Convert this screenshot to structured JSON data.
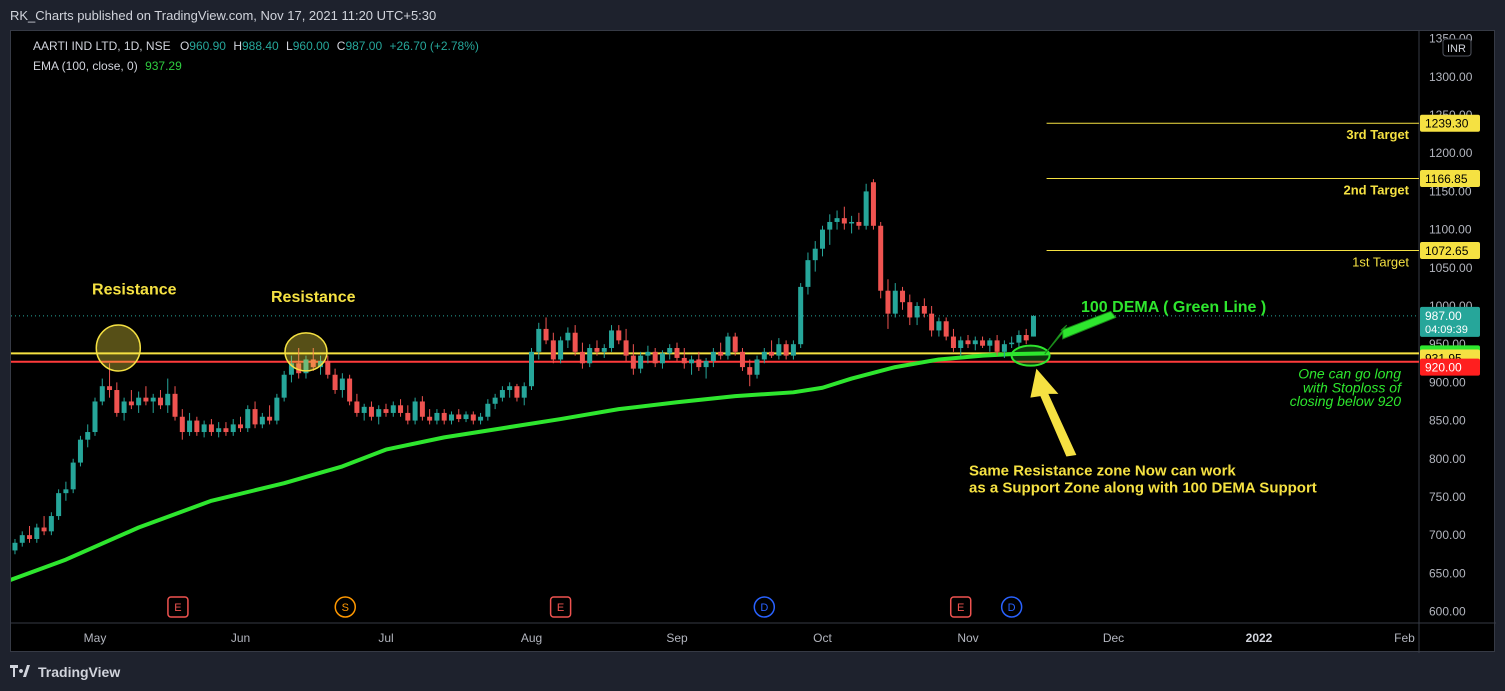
{
  "header": {
    "published": "RK_Charts published on TradingView.com, Nov 17, 2021 11:20 UTC+5:30"
  },
  "legend": {
    "symbol": "AARTI IND LTD, 1D, NSE",
    "o_label": "O",
    "o": "960.90",
    "h_label": "H",
    "h": "988.40",
    "l_label": "L",
    "l": "960.00",
    "c_label": "C",
    "c": "987.00",
    "change": "+26.70 (+2.78%)",
    "ema_label": "EMA (100, close, 0)",
    "ema_value": "937.29"
  },
  "footer": {
    "brand": "TradingView"
  },
  "colors": {
    "up": "#26a69a",
    "down": "#ef5350",
    "ema": "#2ee62e",
    "target": "#f5e142",
    "yellow_label": "#f5e142",
    "red_label": "#ff1f1f"
  },
  "chart_data": {
    "type": "candlestick",
    "currency": "INR",
    "ylim": [
      585,
      1360
    ],
    "y_ticks": [
      "1350.00",
      "1300.00",
      "1250.00",
      "1200.00",
      "1150.00",
      "1100.00",
      "1050.00",
      "1000.00",
      "950.00",
      "900.00",
      "850.00",
      "800.00",
      "750.00",
      "700.00",
      "650.00",
      "600.00"
    ],
    "x_ticks": [
      "May",
      "Jun",
      "Jul",
      "Aug",
      "Sep",
      "Oct",
      "Nov",
      "Dec",
      "2022",
      "Feb"
    ],
    "price_labels": [
      {
        "text": "1239.30",
        "value": 1239.3,
        "style": "yellow"
      },
      {
        "text": "1166.85",
        "value": 1166.85,
        "style": "yellow"
      },
      {
        "text": "1072.65",
        "value": 1072.65,
        "style": "yellow"
      },
      {
        "text": "987.00",
        "value": 987.0,
        "style": "teal",
        "sub": "04:09:39"
      },
      {
        "text": "937.30",
        "value": 937.3,
        "style": "green"
      },
      {
        "text": "931.95",
        "value": 931.95,
        "style": "yellow"
      },
      {
        "text": "920.00",
        "value": 920.0,
        "style": "red"
      }
    ],
    "targets": [
      {
        "label": "3rd Target",
        "value": 1239.3
      },
      {
        "label": "2nd Target",
        "value": 1166.85
      },
      {
        "label": "1st Target",
        "value": 1072.65
      }
    ],
    "zone_lines": [
      {
        "value": 938,
        "color": "#f5e142"
      },
      {
        "value": 927,
        "color": "#ff3b3b"
      }
    ],
    "last_price_dotted": 987.0,
    "events": [
      {
        "label": "E",
        "month_pos": 0.57,
        "color": "#ef5350"
      },
      {
        "label": "S",
        "month_pos": 1.72,
        "color": "#ff9800"
      },
      {
        "label": "E",
        "month_pos": 3.2,
        "color": "#ef5350"
      },
      {
        "label": "D",
        "month_pos": 4.6,
        "color": "#2962ff"
      },
      {
        "label": "E",
        "month_pos": 5.95,
        "color": "#ef5350"
      },
      {
        "label": "D",
        "month_pos": 6.3,
        "color": "#2962ff"
      }
    ],
    "annotations": {
      "resistance_1": "Resistance",
      "resistance_2": "Resistance",
      "ema_note": "100 DEMA ( Green Line )",
      "support_note_1": "Same Resistance zone Now can work",
      "support_note_2": "as a Support Zone along with 100 DEMA Support",
      "stoploss_1": "One can go long",
      "stoploss_2": "with Stoploss of",
      "stoploss_3": "closing below 920"
    },
    "ema": [
      [
        -1.0,
        620
      ],
      [
        -0.6,
        640
      ],
      [
        -0.2,
        668
      ],
      [
        0.3,
        710
      ],
      [
        0.8,
        745
      ],
      [
        1.3,
        768
      ],
      [
        1.7,
        790
      ],
      [
        2.0,
        812
      ],
      [
        2.4,
        828
      ],
      [
        2.8,
        840
      ],
      [
        3.2,
        852
      ],
      [
        3.6,
        865
      ],
      [
        4.0,
        874
      ],
      [
        4.4,
        882
      ],
      [
        4.8,
        887
      ],
      [
        5.0,
        893
      ],
      [
        5.2,
        905
      ],
      [
        5.5,
        920
      ],
      [
        5.8,
        930
      ],
      [
        6.1,
        935
      ],
      [
        6.3,
        937
      ],
      [
        6.55,
        938
      ]
    ],
    "candles": [
      {
        "t": -0.55,
        "o": 680,
        "h": 695,
        "l": 675,
        "c": 690
      },
      {
        "t": -0.5,
        "o": 690,
        "h": 705,
        "l": 685,
        "c": 700
      },
      {
        "t": -0.45,
        "o": 700,
        "h": 712,
        "l": 690,
        "c": 695
      },
      {
        "t": -0.4,
        "o": 695,
        "h": 715,
        "l": 690,
        "c": 710
      },
      {
        "t": -0.35,
        "o": 710,
        "h": 725,
        "l": 700,
        "c": 705
      },
      {
        "t": -0.3,
        "o": 705,
        "h": 730,
        "l": 700,
        "c": 725
      },
      {
        "t": -0.25,
        "o": 725,
        "h": 760,
        "l": 720,
        "c": 755
      },
      {
        "t": -0.2,
        "o": 755,
        "h": 770,
        "l": 745,
        "c": 760
      },
      {
        "t": -0.15,
        "o": 760,
        "h": 800,
        "l": 755,
        "c": 795
      },
      {
        "t": -0.1,
        "o": 795,
        "h": 830,
        "l": 790,
        "c": 825
      },
      {
        "t": -0.05,
        "o": 825,
        "h": 845,
        "l": 815,
        "c": 835
      },
      {
        "t": 0.0,
        "o": 835,
        "h": 880,
        "l": 830,
        "c": 875
      },
      {
        "t": 0.05,
        "o": 875,
        "h": 905,
        "l": 870,
        "c": 895
      },
      {
        "t": 0.1,
        "o": 895,
        "h": 925,
        "l": 880,
        "c": 890
      },
      {
        "t": 0.15,
        "o": 890,
        "h": 900,
        "l": 855,
        "c": 860
      },
      {
        "t": 0.2,
        "o": 860,
        "h": 880,
        "l": 850,
        "c": 875
      },
      {
        "t": 0.25,
        "o": 875,
        "h": 890,
        "l": 865,
        "c": 870
      },
      {
        "t": 0.3,
        "o": 870,
        "h": 888,
        "l": 860,
        "c": 880
      },
      {
        "t": 0.35,
        "o": 880,
        "h": 895,
        "l": 870,
        "c": 875
      },
      {
        "t": 0.4,
        "o": 875,
        "h": 885,
        "l": 860,
        "c": 880
      },
      {
        "t": 0.45,
        "o": 880,
        "h": 890,
        "l": 865,
        "c": 870
      },
      {
        "t": 0.5,
        "o": 870,
        "h": 905,
        "l": 860,
        "c": 885
      },
      {
        "t": 0.55,
        "o": 885,
        "h": 895,
        "l": 850,
        "c": 855
      },
      {
        "t": 0.6,
        "o": 855,
        "h": 865,
        "l": 825,
        "c": 835
      },
      {
        "t": 0.65,
        "o": 835,
        "h": 860,
        "l": 830,
        "c": 850
      },
      {
        "t": 0.7,
        "o": 850,
        "h": 855,
        "l": 830,
        "c": 835
      },
      {
        "t": 0.75,
        "o": 835,
        "h": 850,
        "l": 828,
        "c": 845
      },
      {
        "t": 0.8,
        "o": 845,
        "h": 852,
        "l": 830,
        "c": 835
      },
      {
        "t": 0.85,
        "o": 835,
        "h": 848,
        "l": 828,
        "c": 840
      },
      {
        "t": 0.9,
        "o": 840,
        "h": 848,
        "l": 830,
        "c": 835
      },
      {
        "t": 0.95,
        "o": 835,
        "h": 852,
        "l": 830,
        "c": 845
      },
      {
        "t": 1.0,
        "o": 845,
        "h": 855,
        "l": 835,
        "c": 840
      },
      {
        "t": 1.05,
        "o": 840,
        "h": 870,
        "l": 835,
        "c": 865
      },
      {
        "t": 1.1,
        "o": 865,
        "h": 875,
        "l": 840,
        "c": 845
      },
      {
        "t": 1.15,
        "o": 845,
        "h": 860,
        "l": 840,
        "c": 855
      },
      {
        "t": 1.2,
        "o": 855,
        "h": 870,
        "l": 845,
        "c": 850
      },
      {
        "t": 1.25,
        "o": 850,
        "h": 885,
        "l": 845,
        "c": 880
      },
      {
        "t": 1.3,
        "o": 880,
        "h": 915,
        "l": 875,
        "c": 910
      },
      {
        "t": 1.35,
        "o": 910,
        "h": 935,
        "l": 900,
        "c": 925
      },
      {
        "t": 1.4,
        "o": 925,
        "h": 945,
        "l": 905,
        "c": 912
      },
      {
        "t": 1.45,
        "o": 912,
        "h": 935,
        "l": 905,
        "c": 930
      },
      {
        "t": 1.5,
        "o": 930,
        "h": 945,
        "l": 915,
        "c": 920
      },
      {
        "t": 1.55,
        "o": 920,
        "h": 935,
        "l": 910,
        "c": 928
      },
      {
        "t": 1.6,
        "o": 928,
        "h": 935,
        "l": 905,
        "c": 910
      },
      {
        "t": 1.65,
        "o": 910,
        "h": 918,
        "l": 885,
        "c": 890
      },
      {
        "t": 1.7,
        "o": 890,
        "h": 912,
        "l": 880,
        "c": 905
      },
      {
        "t": 1.75,
        "o": 905,
        "h": 910,
        "l": 870,
        "c": 875
      },
      {
        "t": 1.8,
        "o": 875,
        "h": 885,
        "l": 855,
        "c": 860
      },
      {
        "t": 1.85,
        "o": 860,
        "h": 872,
        "l": 850,
        "c": 868
      },
      {
        "t": 1.9,
        "o": 868,
        "h": 875,
        "l": 850,
        "c": 855
      },
      {
        "t": 1.95,
        "o": 855,
        "h": 870,
        "l": 845,
        "c": 865
      },
      {
        "t": 2.0,
        "o": 865,
        "h": 872,
        "l": 855,
        "c": 860
      },
      {
        "t": 2.05,
        "o": 860,
        "h": 875,
        "l": 855,
        "c": 870
      },
      {
        "t": 2.1,
        "o": 870,
        "h": 878,
        "l": 855,
        "c": 860
      },
      {
        "t": 2.15,
        "o": 860,
        "h": 870,
        "l": 845,
        "c": 850
      },
      {
        "t": 2.2,
        "o": 850,
        "h": 880,
        "l": 845,
        "c": 875
      },
      {
        "t": 2.25,
        "o": 875,
        "h": 882,
        "l": 850,
        "c": 855
      },
      {
        "t": 2.3,
        "o": 855,
        "h": 865,
        "l": 845,
        "c": 850
      },
      {
        "t": 2.35,
        "o": 850,
        "h": 865,
        "l": 845,
        "c": 860
      },
      {
        "t": 2.4,
        "o": 860,
        "h": 865,
        "l": 845,
        "c": 850
      },
      {
        "t": 2.45,
        "o": 850,
        "h": 862,
        "l": 845,
        "c": 858
      },
      {
        "t": 2.5,
        "o": 858,
        "h": 865,
        "l": 848,
        "c": 852
      },
      {
        "t": 2.55,
        "o": 852,
        "h": 862,
        "l": 848,
        "c": 858
      },
      {
        "t": 2.6,
        "o": 858,
        "h": 862,
        "l": 845,
        "c": 850
      },
      {
        "t": 2.65,
        "o": 850,
        "h": 860,
        "l": 845,
        "c": 855
      },
      {
        "t": 2.7,
        "o": 855,
        "h": 878,
        "l": 850,
        "c": 872
      },
      {
        "t": 2.75,
        "o": 872,
        "h": 885,
        "l": 865,
        "c": 880
      },
      {
        "t": 2.8,
        "o": 880,
        "h": 895,
        "l": 875,
        "c": 890
      },
      {
        "t": 2.85,
        "o": 890,
        "h": 900,
        "l": 880,
        "c": 895
      },
      {
        "t": 2.9,
        "o": 895,
        "h": 898,
        "l": 875,
        "c": 880
      },
      {
        "t": 2.95,
        "o": 880,
        "h": 900,
        "l": 870,
        "c": 895
      },
      {
        "t": 3.0,
        "o": 895,
        "h": 945,
        "l": 890,
        "c": 940
      },
      {
        "t": 3.05,
        "o": 940,
        "h": 978,
        "l": 930,
        "c": 970
      },
      {
        "t": 3.1,
        "o": 970,
        "h": 985,
        "l": 950,
        "c": 955
      },
      {
        "t": 3.15,
        "o": 955,
        "h": 965,
        "l": 925,
        "c": 930
      },
      {
        "t": 3.2,
        "o": 930,
        "h": 960,
        "l": 925,
        "c": 955
      },
      {
        "t": 3.25,
        "o": 955,
        "h": 972,
        "l": 945,
        "c": 965
      },
      {
        "t": 3.3,
        "o": 965,
        "h": 975,
        "l": 935,
        "c": 940
      },
      {
        "t": 3.35,
        "o": 940,
        "h": 952,
        "l": 918,
        "c": 925
      },
      {
        "t": 3.4,
        "o": 925,
        "h": 950,
        "l": 920,
        "c": 945
      },
      {
        "t": 3.45,
        "o": 945,
        "h": 955,
        "l": 935,
        "c": 940
      },
      {
        "t": 3.5,
        "o": 940,
        "h": 950,
        "l": 932,
        "c": 945
      },
      {
        "t": 3.55,
        "o": 945,
        "h": 975,
        "l": 940,
        "c": 968
      },
      {
        "t": 3.6,
        "o": 968,
        "h": 975,
        "l": 950,
        "c": 955
      },
      {
        "t": 3.65,
        "o": 955,
        "h": 970,
        "l": 928,
        "c": 935
      },
      {
        "t": 3.7,
        "o": 935,
        "h": 950,
        "l": 910,
        "c": 918
      },
      {
        "t": 3.75,
        "o": 918,
        "h": 940,
        "l": 912,
        "c": 935
      },
      {
        "t": 3.8,
        "o": 935,
        "h": 948,
        "l": 925,
        "c": 940
      },
      {
        "t": 3.85,
        "o": 940,
        "h": 945,
        "l": 920,
        "c": 925
      },
      {
        "t": 3.9,
        "o": 925,
        "h": 942,
        "l": 918,
        "c": 938
      },
      {
        "t": 3.95,
        "o": 938,
        "h": 950,
        "l": 930,
        "c": 945
      },
      {
        "t": 4.0,
        "o": 945,
        "h": 952,
        "l": 928,
        "c": 932
      },
      {
        "t": 4.05,
        "o": 932,
        "h": 945,
        "l": 918,
        "c": 925
      },
      {
        "t": 4.1,
        "o": 925,
        "h": 935,
        "l": 910,
        "c": 930
      },
      {
        "t": 4.15,
        "o": 930,
        "h": 940,
        "l": 915,
        "c": 920
      },
      {
        "t": 4.2,
        "o": 920,
        "h": 932,
        "l": 905,
        "c": 928
      },
      {
        "t": 4.25,
        "o": 928,
        "h": 945,
        "l": 920,
        "c": 940
      },
      {
        "t": 4.3,
        "o": 940,
        "h": 952,
        "l": 930,
        "c": 935
      },
      {
        "t": 4.35,
        "o": 935,
        "h": 965,
        "l": 930,
        "c": 960
      },
      {
        "t": 4.4,
        "o": 960,
        "h": 965,
        "l": 935,
        "c": 940
      },
      {
        "t": 4.45,
        "o": 940,
        "h": 945,
        "l": 915,
        "c": 920
      },
      {
        "t": 4.5,
        "o": 920,
        "h": 930,
        "l": 895,
        "c": 910
      },
      {
        "t": 4.55,
        "o": 910,
        "h": 935,
        "l": 905,
        "c": 930
      },
      {
        "t": 4.6,
        "o": 930,
        "h": 945,
        "l": 925,
        "c": 940
      },
      {
        "t": 4.65,
        "o": 940,
        "h": 955,
        "l": 932,
        "c": 935
      },
      {
        "t": 4.7,
        "o": 935,
        "h": 958,
        "l": 930,
        "c": 950
      },
      {
        "t": 4.75,
        "o": 950,
        "h": 955,
        "l": 930,
        "c": 935
      },
      {
        "t": 4.8,
        "o": 935,
        "h": 955,
        "l": 930,
        "c": 950
      },
      {
        "t": 4.85,
        "o": 950,
        "h": 1030,
        "l": 945,
        "c": 1025
      },
      {
        "t": 4.9,
        "o": 1025,
        "h": 1070,
        "l": 1015,
        "c": 1060
      },
      {
        "t": 4.95,
        "o": 1060,
        "h": 1085,
        "l": 1045,
        "c": 1075
      },
      {
        "t": 5.0,
        "o": 1075,
        "h": 1105,
        "l": 1065,
        "c": 1100
      },
      {
        "t": 5.05,
        "o": 1100,
        "h": 1120,
        "l": 1080,
        "c": 1110
      },
      {
        "t": 5.1,
        "o": 1110,
        "h": 1125,
        "l": 1100,
        "c": 1115
      },
      {
        "t": 5.15,
        "o": 1115,
        "h": 1130,
        "l": 1100,
        "c": 1108
      },
      {
        "t": 5.2,
        "o": 1108,
        "h": 1118,
        "l": 1095,
        "c": 1110
      },
      {
        "t": 5.25,
        "o": 1110,
        "h": 1122,
        "l": 1100,
        "c": 1105
      },
      {
        "t": 5.3,
        "o": 1105,
        "h": 1160,
        "l": 1100,
        "c": 1150
      },
      {
        "t": 5.35,
        "o": 1162,
        "h": 1166,
        "l": 1100,
        "c": 1105
      },
      {
        "t": 5.4,
        "o": 1105,
        "h": 1110,
        "l": 1010,
        "c": 1020
      },
      {
        "t": 5.45,
        "o": 1020,
        "h": 1035,
        "l": 970,
        "c": 990
      },
      {
        "t": 5.5,
        "o": 990,
        "h": 1030,
        "l": 985,
        "c": 1020
      },
      {
        "t": 5.55,
        "o": 1020,
        "h": 1025,
        "l": 995,
        "c": 1005
      },
      {
        "t": 5.6,
        "o": 1005,
        "h": 1015,
        "l": 975,
        "c": 985
      },
      {
        "t": 5.65,
        "o": 985,
        "h": 1005,
        "l": 975,
        "c": 1000
      },
      {
        "t": 5.7,
        "o": 1000,
        "h": 1010,
        "l": 985,
        "c": 990
      },
      {
        "t": 5.75,
        "o": 990,
        "h": 1000,
        "l": 960,
        "c": 968
      },
      {
        "t": 5.8,
        "o": 968,
        "h": 985,
        "l": 960,
        "c": 980
      },
      {
        "t": 5.85,
        "o": 980,
        "h": 985,
        "l": 955,
        "c": 960
      },
      {
        "t": 5.9,
        "o": 960,
        "h": 970,
        "l": 940,
        "c": 945
      },
      {
        "t": 5.95,
        "o": 945,
        "h": 960,
        "l": 935,
        "c": 955
      },
      {
        "t": 6.0,
        "o": 955,
        "h": 962,
        "l": 945,
        "c": 950
      },
      {
        "t": 6.05,
        "o": 950,
        "h": 960,
        "l": 942,
        "c": 955
      },
      {
        "t": 6.1,
        "o": 955,
        "h": 960,
        "l": 945,
        "c": 948
      },
      {
        "t": 6.15,
        "o": 948,
        "h": 958,
        "l": 940,
        "c": 955
      },
      {
        "t": 6.2,
        "o": 955,
        "h": 962,
        "l": 935,
        "c": 940
      },
      {
        "t": 6.25,
        "o": 940,
        "h": 955,
        "l": 932,
        "c": 950
      },
      {
        "t": 6.3,
        "o": 950,
        "h": 960,
        "l": 945,
        "c": 952
      },
      {
        "t": 6.35,
        "o": 952,
        "h": 968,
        "l": 945,
        "c": 962
      },
      {
        "t": 6.4,
        "o": 962,
        "h": 970,
        "l": 950,
        "c": 955
      },
      {
        "t": 6.45,
        "o": 960,
        "h": 988,
        "l": 960,
        "c": 987
      }
    ]
  }
}
